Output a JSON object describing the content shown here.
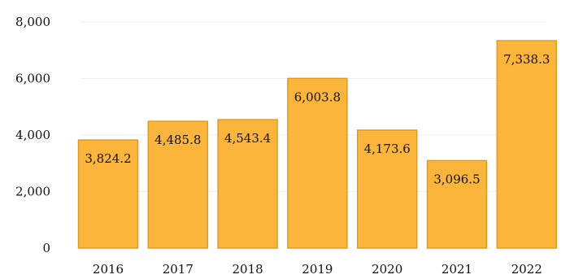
{
  "chart_data": {
    "type": "bar",
    "categories": [
      "2016",
      "2017",
      "2018",
      "2019",
      "2020",
      "2021",
      "2022"
    ],
    "values": [
      3824.2,
      4485.8,
      4543.4,
      6003.8,
      4173.6,
      3096.5,
      7338.3
    ],
    "value_labels": [
      "3,824.2",
      "4,485.8",
      "4,543.4",
      "6,003.8",
      "4,173.6",
      "3,096.5",
      "7,338.3"
    ],
    "y_ticks": [
      0,
      2000,
      4000,
      6000,
      8000
    ],
    "y_tick_labels": [
      "0",
      "2,000",
      "4,000",
      "6,000",
      "8,000"
    ],
    "ylim": [
      0,
      8000
    ],
    "grid": true,
    "bar_color": "#FBB53A",
    "bar_edge_color": "#E39B1E",
    "title": "",
    "xlabel": "",
    "ylabel": ""
  }
}
